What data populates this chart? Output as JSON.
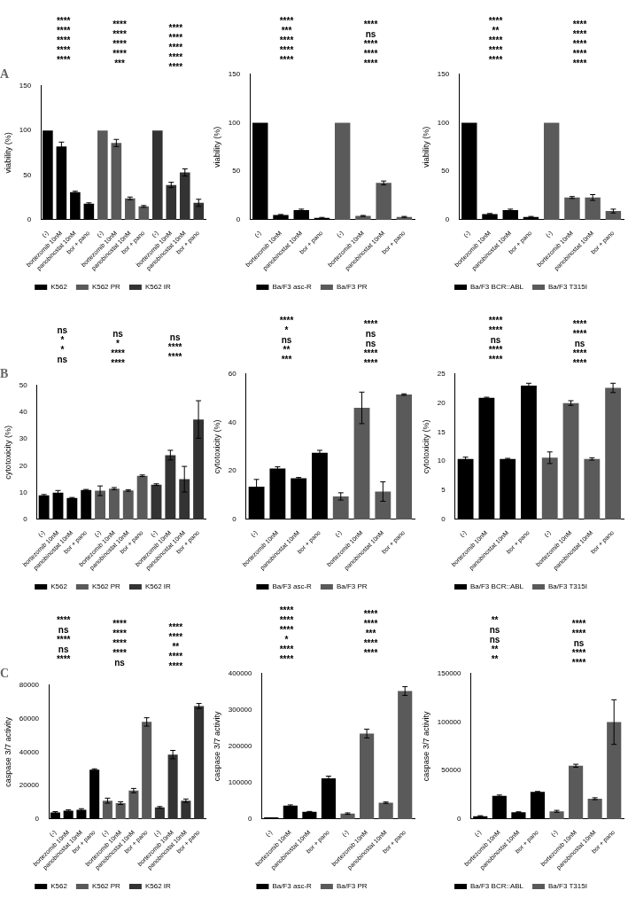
{
  "chart_data": [
    {
      "type": "bar",
      "title": "A",
      "ylabel": "viability (%)",
      "categories": [
        "(-)",
        "bortezomib 10nM",
        "panobinostat 10nM",
        "bor + pano",
        "(-)",
        "bortezomib 10nM",
        "panobinostat 10nM",
        "bor + pano",
        "(-)",
        "bortezomib 10nM",
        "panobinostat 10nM",
        "bor + pano"
      ],
      "ylim": [
        0,
        150
      ],
      "yticks": [
        0,
        50,
        100,
        150
      ],
      "legend": "bottom",
      "series": [
        {
          "name": "K562",
          "color": "#000000",
          "values": [
            100,
            82,
            31,
            18,
            null,
            null,
            null,
            null,
            null,
            null,
            null,
            null
          ],
          "errors": [
            null,
            5,
            1,
            1,
            null,
            null,
            null,
            null,
            null,
            null,
            null,
            null
          ]
        },
        {
          "name": "K562 PR",
          "color": "#5a5a5a",
          "values": [
            null,
            null,
            null,
            null,
            100,
            86,
            24,
            15,
            null,
            null,
            null,
            null
          ],
          "errors": [
            null,
            null,
            null,
            null,
            null,
            4,
            1.5,
            1,
            null,
            null,
            null,
            null
          ]
        },
        {
          "name": "K562 IR",
          "color": "#333333",
          "values": [
            null,
            null,
            null,
            null,
            null,
            null,
            null,
            null,
            100,
            39,
            53,
            19
          ],
          "errors": [
            null,
            null,
            null,
            null,
            null,
            null,
            null,
            null,
            null,
            3,
            4,
            4
          ]
        }
      ],
      "annotations": [
        "****",
        "****",
        "****",
        "****",
        "****",
        "****",
        "****",
        "****",
        "****",
        "***",
        "****",
        "****",
        "****",
        "****",
        "****"
      ]
    },
    {
      "type": "bar",
      "ylabel": "viability (%)",
      "categories": [
        "(-)",
        "bortezomib 10nM",
        "panobinostat 10nM",
        "bor + pano",
        "(-)",
        "bortezomib 10nM",
        "panobinostat 10nM",
        "bor + pano"
      ],
      "ylim": [
        0,
        150
      ],
      "yticks": [
        0,
        50,
        100,
        150
      ],
      "legend": "bottom",
      "series": [
        {
          "name": "Ba/F3 asc-R",
          "color": "#000000",
          "values": [
            100,
            5,
            10,
            2,
            null,
            null,
            null,
            null
          ],
          "errors": [
            null,
            0.5,
            1,
            0.5,
            null,
            null,
            null,
            null
          ]
        },
        {
          "name": "Ba/F3 PR",
          "color": "#5a5a5a",
          "values": [
            null,
            null,
            null,
            null,
            100,
            4,
            38,
            3
          ],
          "errors": [
            null,
            null,
            null,
            null,
            null,
            0.5,
            2,
            0.5
          ]
        }
      ],
      "annotations": [
        "****",
        "***",
        "****",
        "****",
        "****",
        "****",
        "ns",
        "****",
        "****",
        "****"
      ]
    },
    {
      "type": "bar",
      "ylabel": "viability (%)",
      "categories": [
        "(-)",
        "bortezomib 10nM",
        "panobinostat 10nM",
        "bor + pano",
        "(-)",
        "bortezomib 10nM",
        "panobinostat 10nM",
        "bor + pano"
      ],
      "ylim": [
        0,
        150
      ],
      "yticks": [
        0,
        50,
        100,
        150
      ],
      "legend": "bottom",
      "series": [
        {
          "name": "Ba/F3 BCR::ABL",
          "color": "#000000",
          "values": [
            100,
            6,
            10,
            3,
            null,
            null,
            null,
            null
          ],
          "errors": [
            null,
            0.5,
            1,
            0.5,
            null,
            null,
            null,
            null
          ]
        },
        {
          "name": "Ba/F3 T315I",
          "color": "#5a5a5a",
          "values": [
            null,
            null,
            null,
            null,
            100,
            23,
            23,
            9
          ],
          "errors": [
            null,
            null,
            null,
            null,
            null,
            1,
            3,
            2
          ]
        }
      ],
      "annotations": [
        "****",
        "**",
        "****",
        "****",
        "****",
        "****",
        "****",
        "****",
        "****",
        "****"
      ]
    },
    {
      "type": "bar",
      "title": "B",
      "ylabel": "cytotoxicity (%)",
      "categories": [
        "(-)",
        "bortezomib 10nM",
        "panobinostat 10nM",
        "bor + pano",
        "(-)",
        "bortezomib 10nM",
        "panobinostat 10nM",
        "bor + pano",
        "(-)",
        "bortezomib 10nM",
        "panobinostat 10nM",
        "bor + pano"
      ],
      "ylim": [
        0,
        50
      ],
      "yticks": [
        0,
        10,
        20,
        30,
        40,
        50
      ],
      "legend": "bottom",
      "series": [
        {
          "name": "K562",
          "color": "#000000",
          "values": [
            9,
            10,
            8,
            11,
            null,
            null,
            null,
            null,
            null,
            null,
            null,
            null
          ],
          "errors": [
            0.3,
            0.8,
            0.2,
            0.2,
            null,
            null,
            null,
            null,
            null,
            null,
            null,
            null
          ]
        },
        {
          "name": "K562 PR",
          "color": "#5a5a5a",
          "values": [
            null,
            null,
            null,
            null,
            10.7,
            11.5,
            10.8,
            16.3,
            null,
            null,
            null,
            null
          ],
          "errors": [
            null,
            null,
            null,
            null,
            1.8,
            0.4,
            0.3,
            0.3,
            null,
            null,
            null,
            null
          ]
        },
        {
          "name": "K562 IR",
          "color": "#333333",
          "values": [
            null,
            null,
            null,
            null,
            null,
            null,
            null,
            null,
            13,
            24,
            15,
            37.3
          ],
          "errors": [
            null,
            null,
            null,
            null,
            null,
            null,
            null,
            null,
            0.3,
            1.8,
            4.8,
            7
          ]
        }
      ],
      "annotations": [
        "ns",
        "*",
        "*",
        "ns",
        "ns",
        "*",
        "****",
        "****",
        "ns",
        "****",
        "****"
      ]
    },
    {
      "type": "bar",
      "ylabel": "cytotoxicity (%)",
      "categories": [
        "(-)",
        "bortezomib 10nM",
        "panobinostat 10nM",
        "bor + pano",
        "(-)",
        "bortezomib 10nM",
        "panobinostat 10nM",
        "bor + pano"
      ],
      "ylim": [
        0,
        60
      ],
      "yticks": [
        0,
        20,
        40,
        60
      ],
      "legend": "bottom",
      "series": [
        {
          "name": "Ba/F3 asc-R",
          "color": "#000000",
          "values": [
            13.5,
            21,
            17,
            27.5,
            null,
            null,
            null,
            null
          ],
          "errors": [
            3,
            0.7,
            0.3,
            1,
            null,
            null,
            null,
            null
          ]
        },
        {
          "name": "Ba/F3 PR",
          "color": "#5a5a5a",
          "values": [
            null,
            null,
            null,
            null,
            9.5,
            46,
            11.5,
            51.5
          ],
          "errors": [
            null,
            null,
            null,
            null,
            1.5,
            6.5,
            4,
            0.3
          ]
        }
      ],
      "annotations": [
        "****",
        "*",
        "ns",
        "**",
        "***",
        "****",
        "ns",
        "ns",
        "****",
        "****"
      ]
    },
    {
      "type": "bar",
      "ylabel": "cytotoxicity (%)",
      "categories": [
        "(-)",
        "bortezomib 10nM",
        "panobinostat 10nM",
        "bor + pano",
        "(-)",
        "bortezomib 10nM",
        "panobinostat 10nM",
        "bor + pano"
      ],
      "ylim": [
        0,
        25
      ],
      "yticks": [
        0,
        5,
        10,
        15,
        20,
        25
      ],
      "legend": "bottom",
      "series": [
        {
          "name": "Ba/F3 BCR::ABL",
          "color": "#000000",
          "values": [
            10.4,
            20.9,
            10.4,
            23,
            null,
            null,
            null,
            null
          ],
          "errors": [
            0.3,
            0.1,
            0.1,
            0.4,
            null,
            null,
            null,
            null
          ]
        },
        {
          "name": "Ba/F3 T315I",
          "color": "#5a5a5a",
          "values": [
            null,
            null,
            null,
            null,
            10.6,
            20,
            10.4,
            22.6
          ],
          "errors": [
            null,
            null,
            null,
            null,
            1,
            0.4,
            0.2,
            0.8
          ]
        }
      ],
      "annotations": [
        "****",
        "****",
        "ns",
        "****",
        "****",
        "****",
        "****",
        "ns",
        "****",
        "****"
      ]
    },
    {
      "type": "bar",
      "title": "C",
      "ylabel": "caspase 3/7 activity",
      "categories": [
        "(-)",
        "bortezomib 10nM",
        "panobinostat 10nM",
        "bor + pano",
        "(-)",
        "bortezomib 10nM",
        "panobinostat 10nM",
        "bor + pano",
        "(-)",
        "bortezomib 10nM",
        "panobinostat 10nM",
        "bor + pano"
      ],
      "ylim": [
        0,
        80000
      ],
      "yticks": [
        0,
        20000,
        40000,
        60000,
        80000
      ],
      "legend": "bottom",
      "series": [
        {
          "name": "K562",
          "color": "#000000",
          "values": [
            4000,
            5000,
            5500,
            29500,
            null,
            null,
            null,
            null,
            null,
            null,
            null,
            null
          ],
          "errors": [
            500,
            500,
            700,
            500,
            null,
            null,
            null,
            null,
            null,
            null,
            null,
            null
          ]
        },
        {
          "name": "K562 PR",
          "color": "#5a5a5a",
          "values": [
            null,
            null,
            null,
            null,
            11000,
            9500,
            17000,
            58000,
            null,
            null,
            null,
            null
          ],
          "errors": [
            null,
            null,
            null,
            null,
            1500,
            800,
            1300,
            2500,
            null,
            null,
            null,
            null
          ]
        },
        {
          "name": "K562 IR",
          "color": "#333333",
          "values": [
            null,
            null,
            null,
            null,
            null,
            null,
            null,
            null,
            7000,
            38500,
            11000,
            67500
          ],
          "errors": [
            null,
            null,
            null,
            null,
            null,
            null,
            null,
            null,
            500,
            2500,
            1000,
            1500
          ]
        }
      ],
      "annotations": [
        "****",
        "ns",
        "****",
        "ns",
        "****",
        "****",
        "****",
        "****",
        "****",
        "ns",
        "****",
        "****",
        "**",
        "****",
        "****"
      ]
    },
    {
      "type": "bar",
      "ylabel": "caspase 3/7 activity",
      "categories": [
        "(-)",
        "bortezomib 10nM",
        "panobinostat 10nM",
        "bor + pano",
        "(-)",
        "bortezomib 10nM",
        "panobinostat 10nM",
        "bor + pano"
      ],
      "ylim": [
        0,
        400000
      ],
      "yticks": [
        0,
        100000,
        200000,
        300000,
        400000
      ],
      "legend": "bottom",
      "series": [
        {
          "name": "Ba/F3 asc-R",
          "color": "#000000",
          "values": [
            5000,
            37000,
            20000,
            112000,
            null,
            null,
            null,
            null
          ],
          "errors": [
            null,
            2000,
            1000,
            6000,
            null,
            null,
            null,
            null
          ]
        },
        {
          "name": "Ba/F3 PR",
          "color": "#5a5a5a",
          "values": [
            null,
            null,
            null,
            null,
            15000,
            235000,
            45000,
            352000
          ],
          "errors": [
            null,
            null,
            null,
            null,
            2000,
            12000,
            2000,
            12000
          ]
        }
      ],
      "annotations": [
        "****",
        "****",
        "****",
        "*",
        "****",
        "****",
        "****",
        "****",
        "***",
        "****",
        "****"
      ]
    },
    {
      "type": "bar",
      "ylabel": "caspase 3/7 activity",
      "categories": [
        "(-)",
        "bortezomib 10nM",
        "panobinostat 10nM",
        "bor + pano",
        "(-)",
        "bortezomib 10nM",
        "panobinostat 10nM",
        "bor + pano"
      ],
      "ylim": [
        0,
        150000
      ],
      "yticks": [
        0,
        50000,
        100000,
        150000
      ],
      "legend": "bottom",
      "series": [
        {
          "name": "Ba/F3 BCR::ABL",
          "color": "#000000",
          "values": [
            3000,
            24000,
            7000,
            28000,
            null,
            null,
            null,
            null
          ],
          "errors": [
            500,
            800,
            500,
            500,
            null,
            null,
            null,
            null
          ]
        },
        {
          "name": "Ba/F3 T315I",
          "color": "#5a5a5a",
          "values": [
            null,
            null,
            null,
            null,
            8000,
            55000,
            21000,
            100000
          ],
          "errors": [
            null,
            null,
            null,
            null,
            1000,
            1500,
            1000,
            23000
          ]
        }
      ],
      "annotations": [
        "**",
        "ns",
        "ns",
        "**",
        "**",
        "****",
        "****",
        "ns",
        "****",
        "****"
      ]
    }
  ]
}
